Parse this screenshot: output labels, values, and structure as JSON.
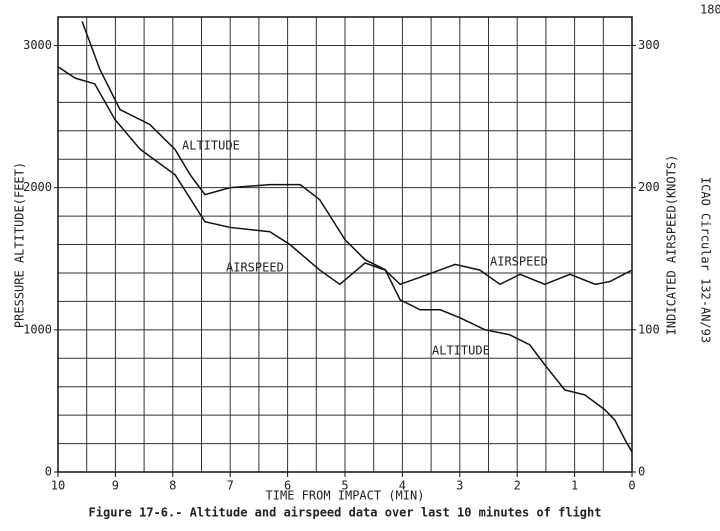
{
  "page_number": "180",
  "side_note": "ICAO Circular 132-AN/93",
  "caption": "Figure 17-6.- Altitude and airspeed data over last 10 minutes of flight",
  "chart_data": {
    "type": "line",
    "x_label": "TIME FROM IMPACT (MIN)",
    "y_label": "PRESSURE ALTITUDE(FEET)",
    "y2_label": "INDICATED AIRSPEED(KNOTS)",
    "xlim": [
      10,
      0
    ],
    "xticks": [
      10,
      9,
      8,
      7,
      6,
      5,
      4,
      3,
      2,
      1,
      0
    ],
    "xgrid": [
      10,
      9.5,
      9,
      8.5,
      8,
      7.5,
      7,
      6.5,
      6,
      5.5,
      5,
      4.5,
      4,
      3.5,
      3,
      2.5,
      2,
      1.5,
      1,
      0.5,
      0
    ],
    "ylim": [
      0,
      3200
    ],
    "yticks": [
      0,
      1000,
      2000,
      3000
    ],
    "ygrid": [
      0,
      200,
      400,
      600,
      800,
      1000,
      1200,
      1400,
      1600,
      1800,
      2000,
      2200,
      2400,
      2600,
      2800,
      3000,
      3200
    ],
    "y2lim": [
      0,
      320
    ],
    "y2ticks": [
      0,
      100,
      200,
      300
    ],
    "grid": true,
    "series": [
      {
        "name": "ALTITUDE",
        "color": "#111111",
        "axis": "y",
        "x": [
          9.58,
          9.27,
          8.92,
          8.4,
          7.96,
          7.7,
          7.44,
          7.0,
          6.31,
          5.78,
          5.44,
          5.0,
          4.65,
          4.3,
          4.04,
          3.69,
          3.34,
          3.0,
          2.56,
          2.13,
          1.78,
          1.52,
          1.17,
          0.82,
          0.47,
          0.3,
          0.12,
          0
        ],
        "values": [
          3169,
          2831,
          2549,
          2444,
          2268,
          2092,
          1951,
          2000,
          2021,
          2021,
          1915,
          1634,
          1493,
          1423,
          1211,
          1141,
          1141,
          1085,
          1000,
          965,
          894,
          754,
          577,
          542,
          437,
          366,
          225,
          141
        ]
      },
      {
        "name": "AIRSPEED",
        "color": "#111111",
        "axis": "y2",
        "x": [
          10,
          9.7,
          9.36,
          9.01,
          8.57,
          7.96,
          7.44,
          7.0,
          6.31,
          5.96,
          5.44,
          5.09,
          4.65,
          4.3,
          4.04,
          3.69,
          3.08,
          2.65,
          2.3,
          1.95,
          1.52,
          1.08,
          0.64,
          0.38,
          0
        ],
        "values": [
          285,
          277,
          273,
          248,
          227,
          209,
          176,
          172,
          169,
          160,
          142,
          132,
          147,
          142,
          132,
          137,
          146,
          142,
          132,
          139,
          132,
          139,
          132,
          134,
          142
        ]
      }
    ],
    "annotations": [
      "ALTITUDE",
      "AIRSPEED",
      "AIRSPEED",
      "ALTITUDE"
    ]
  }
}
